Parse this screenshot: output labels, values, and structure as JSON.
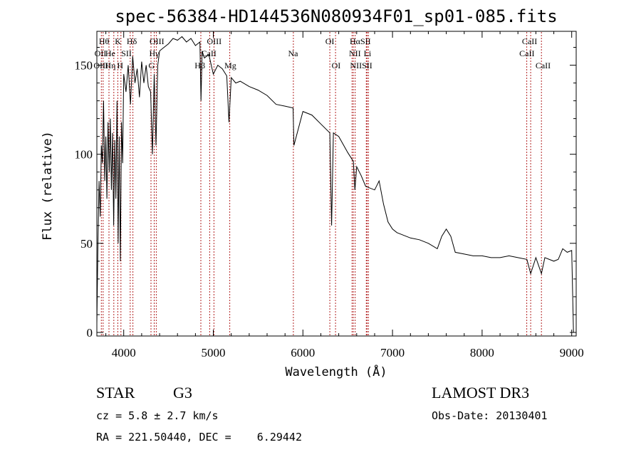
{
  "chart_data": {
    "type": "line",
    "title": "spec-56384-HD144536N080934F01_sp01-085.fits",
    "xlabel": "Wavelength (Å)",
    "ylabel": "Flux (relative)",
    "xlim": [
      3700,
      9050
    ],
    "ylim": [
      -2,
      169
    ],
    "xticks": [
      4000,
      5000,
      6000,
      7000,
      8000,
      9000
    ],
    "yticks": [
      0,
      50,
      100,
      150
    ],
    "grid": false,
    "series": [
      {
        "x": [
          3700,
          3712,
          3725,
          3738,
          3750,
          3762,
          3775,
          3788,
          3800,
          3812,
          3825,
          3838,
          3850,
          3862,
          3875,
          3888,
          3900,
          3912,
          3925,
          3938,
          3950,
          3962,
          3975,
          3988,
          4000,
          4025,
          4050,
          4075,
          4100,
          4125,
          4150,
          4175,
          4200,
          4225,
          4250,
          4275,
          4300,
          4320,
          4340,
          4360,
          4380,
          4400,
          4450,
          4500,
          4550,
          4600,
          4650,
          4700,
          4750,
          4800,
          4850,
          4862,
          4875,
          4900,
          4950,
          5000,
          5050,
          5100,
          5150,
          5175,
          5200,
          5250,
          5300,
          5400,
          5500,
          5600,
          5700,
          5800,
          5890,
          5900,
          6000,
          6100,
          6200,
          6300,
          6320,
          6340,
          6400,
          6500,
          6563,
          6580,
          6600,
          6650,
          6700,
          6800,
          6850,
          6900,
          6950,
          7000,
          7050,
          7100,
          7200,
          7300,
          7400,
          7500,
          7550,
          7600,
          7650,
          7700,
          7800,
          7900,
          8000,
          8100,
          8200,
          8300,
          8400,
          8500,
          8542,
          8600,
          8662,
          8700,
          8800,
          8850,
          8900,
          8950,
          9000,
          9020
        ],
        "values": [
          5,
          50,
          85,
          65,
          105,
          95,
          130,
          85,
          110,
          75,
          118,
          90,
          120,
          80,
          112,
          60,
          108,
          75,
          130,
          50,
          110,
          40,
          118,
          95,
          145,
          135,
          150,
          128,
          155,
          140,
          148,
          132,
          152,
          140,
          150,
          138,
          135,
          100,
          145,
          105,
          150,
          158,
          160,
          162,
          165,
          164,
          166,
          163,
          165,
          161,
          163,
          130,
          158,
          154,
          156,
          145,
          150,
          148,
          144,
          118,
          143,
          140,
          141,
          138,
          136,
          133,
          128,
          127,
          126,
          105,
          124,
          122,
          117,
          112,
          60,
          112,
          110,
          101,
          96,
          80,
          93,
          88,
          82,
          80,
          85,
          72,
          62,
          58,
          56,
          55,
          53,
          52,
          50,
          47,
          54,
          58,
          54,
          45,
          44,
          43,
          43,
          42,
          42,
          43,
          42,
          41,
          33,
          42,
          33,
          42,
          40,
          41,
          47,
          45,
          46,
          0
        ]
      }
    ],
    "line_markers": [
      {
        "w": 3750,
        "label": "Hθ"
      },
      {
        "w": 3770,
        "label": "Hη"
      },
      {
        "w": 3835,
        "label": "Hε"
      },
      {
        "w": 3889,
        "label": "He"
      },
      {
        "w": 3934,
        "label": "K"
      },
      {
        "w": 3969,
        "label": "H"
      },
      {
        "w": 4072,
        "label": "SII"
      },
      {
        "w": 4102,
        "label": "Hδ"
      },
      {
        "w": 4304,
        "label": "G"
      },
      {
        "w": 4340,
        "label": "Hγ"
      },
      {
        "w": 4363,
        "label": "OIII"
      },
      {
        "w": 4861,
        "label": "Hβ"
      },
      {
        "w": 4959,
        "label": "OIII"
      },
      {
        "w": 5007,
        "label": "OIII"
      },
      {
        "w": 5183,
        "label": "Mg"
      },
      {
        "w": 5893,
        "label": "Na"
      },
      {
        "w": 6300,
        "label": "OI"
      },
      {
        "w": 6364,
        "label": "OI"
      },
      {
        "w": 6548,
        "label": "NII"
      },
      {
        "w": 6563,
        "label": "Hα"
      },
      {
        "w": 6583,
        "label": "NII"
      },
      {
        "w": 6707,
        "label": "Li"
      },
      {
        "w": 6716,
        "label": "SII"
      },
      {
        "w": 6731,
        "label": "SII"
      },
      {
        "w": 8498,
        "label": "CaII"
      },
      {
        "w": 8542,
        "label": "CaII"
      },
      {
        "w": 8662,
        "label": "CaII"
      }
    ]
  },
  "marker_labels": [
    {
      "text": "Hθ",
      "w": 3780,
      "row": 1
    },
    {
      "text": "K",
      "w": 3935,
      "row": 1
    },
    {
      "text": "Hδ",
      "w": 4090,
      "row": 1
    },
    {
      "text": "OIII",
      "w": 4370,
      "row": 1
    },
    {
      "text": "OIII",
      "w": 5010,
      "row": 1
    },
    {
      "text": "OI",
      "w": 6300,
      "row": 1
    },
    {
      "text": "HαSII",
      "w": 6640,
      "row": 1
    },
    {
      "text": "CaII",
      "w": 8530,
      "row": 1
    },
    {
      "text": "OII",
      "w": 3740,
      "row": 2
    },
    {
      "text": "He",
      "w": 3850,
      "row": 2
    },
    {
      "text": "SII",
      "w": 4030,
      "row": 2
    },
    {
      "text": "Hγ",
      "w": 4340,
      "row": 2
    },
    {
      "text": "CaII",
      "w": 4950,
      "row": 2
    },
    {
      "text": "Na",
      "w": 5890,
      "row": 2
    },
    {
      "text": "NII",
      "w": 6580,
      "row": 2
    },
    {
      "text": "Li",
      "w": 6720,
      "row": 2
    },
    {
      "text": "CaII",
      "w": 8500,
      "row": 2
    },
    {
      "text": "OIII",
      "w": 3745,
      "row": 3
    },
    {
      "text": "Hη",
      "w": 3850,
      "row": 3
    },
    {
      "text": "H",
      "w": 3960,
      "row": 3
    },
    {
      "text": "G",
      "w": 4310,
      "row": 3
    },
    {
      "text": "Hβ",
      "w": 4850,
      "row": 3
    },
    {
      "text": "Mg",
      "w": 5190,
      "row": 3
    },
    {
      "text": "OI",
      "w": 6370,
      "row": 3
    },
    {
      "text": "NIISII",
      "w": 6650,
      "row": 3
    },
    {
      "text": "CaII",
      "w": 8680,
      "row": 3
    }
  ],
  "info": {
    "object_class": "STAR",
    "subclass": "G3",
    "survey": "LAMOST DR3",
    "cz": "cz = 5.8 ± 2.7 km/s",
    "obs_date": "Obs-Date: 20130401",
    "coords": "RA = 221.50440, DEC =    6.29442"
  },
  "colors": {
    "spectrum": "#000000",
    "marker_line": "#b22222"
  }
}
